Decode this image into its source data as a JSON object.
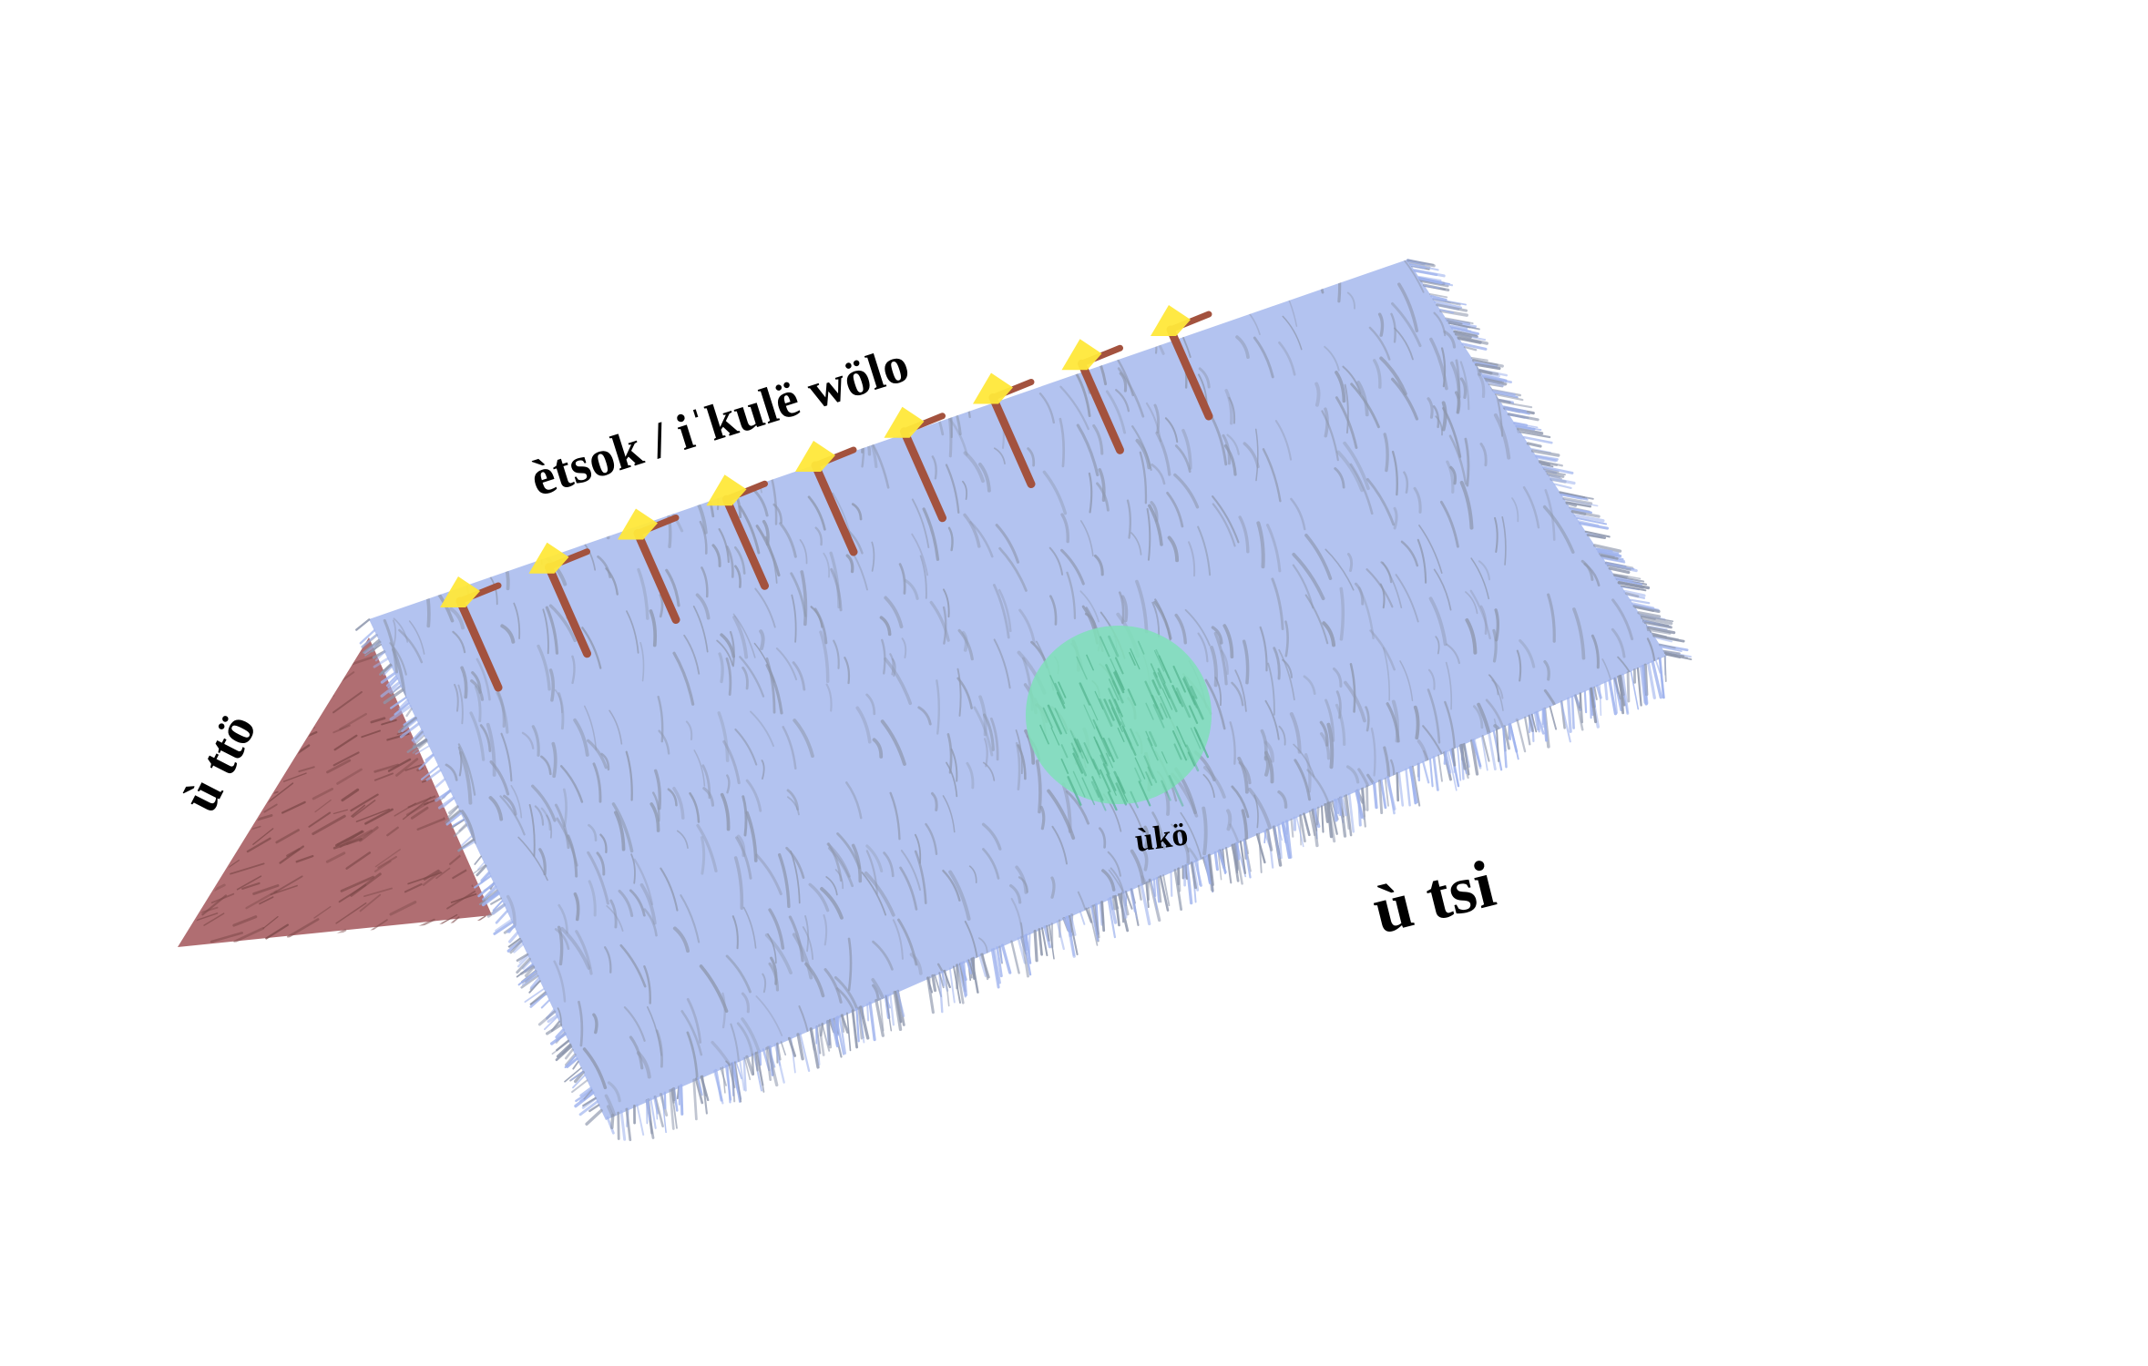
{
  "diagram": {
    "labels": {
      "ridge": "ètsok / iˈkulë wölo",
      "gable": "ù ttö",
      "roof": "ù tsi",
      "patch": "ùkö"
    },
    "colors": {
      "background": "#ffffff",
      "roof_thatch": "#b3c3f0",
      "thatch_strokes": "#8e97ad",
      "roof_fringe": "#9fb3ee",
      "gable_thatch": "#b06e72",
      "gable_strokes": "#7e4a4a",
      "patch": "#7fe0b8",
      "ridge_pegs": "#a3523e",
      "peg_tips": "#ffe83a",
      "text": "#000000"
    },
    "ridge_peg_count": 9
  }
}
